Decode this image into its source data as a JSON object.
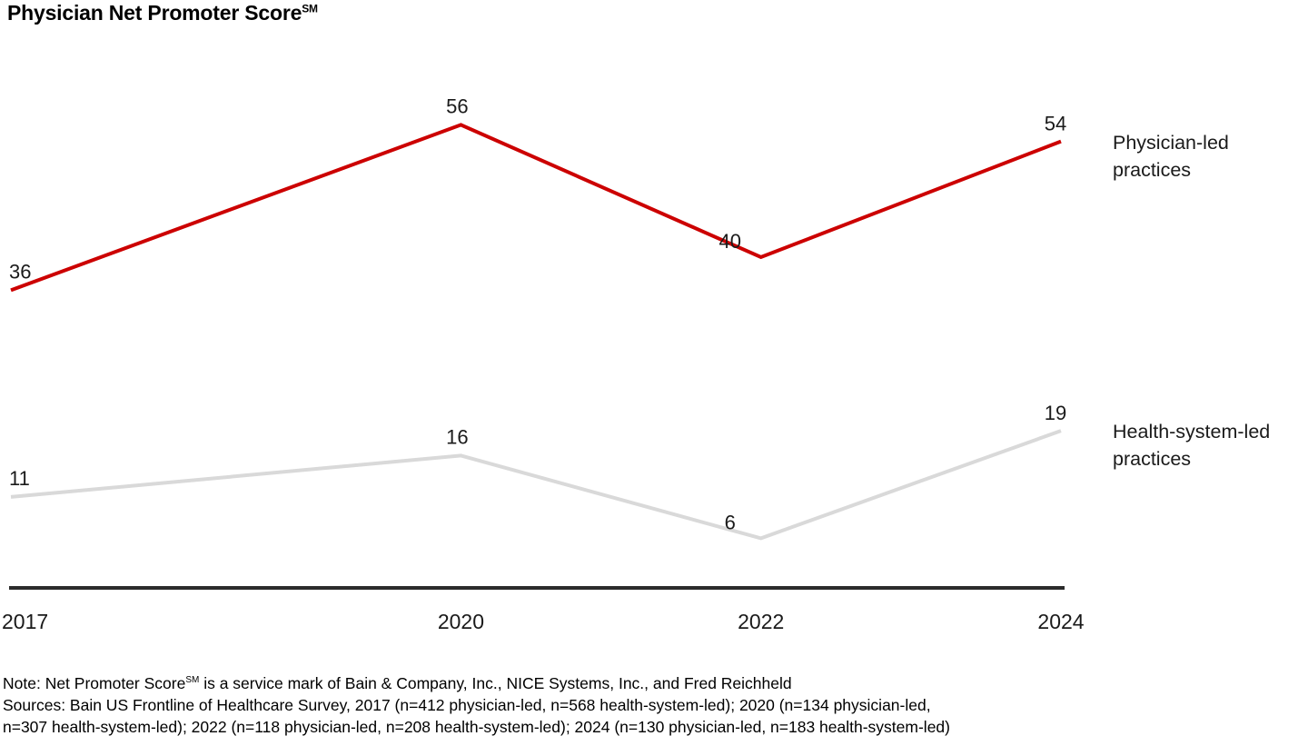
{
  "title": {
    "text": "Physician Net Promoter Score",
    "trademark": "SM"
  },
  "chart_data": {
    "type": "line",
    "x": [
      2017,
      2020,
      2022,
      2024
    ],
    "x_tick_labels": [
      "2017",
      "2020",
      "2022",
      "2024"
    ],
    "series": [
      {
        "name": "Physician-led practices",
        "values": [
          36,
          56,
          40,
          54
        ],
        "color": "#cc0000"
      },
      {
        "name": "Health-system-led practices",
        "values": [
          11,
          16,
          6,
          19
        ],
        "color": "#d9d9d9"
      }
    ],
    "ylim": [
      0,
      60
    ],
    "grid": false,
    "data_labels": true,
    "legend_position": "right-of-line-ends",
    "axis_color": "#2b2b2b",
    "label_color": "#1a1a1a",
    "title": "Physician Net Promoter Score (SM)"
  },
  "series_labels": [
    {
      "lines": [
        "Physician-led",
        "practices"
      ]
    },
    {
      "lines": [
        "Health-system-led",
        "practices"
      ]
    }
  ],
  "note": {
    "line1_prefix": "Note: Net Promoter Score",
    "line1_sup": "SM",
    "line1_suffix": " is a service mark of Bain & Company, Inc., NICE Systems, Inc., and Fred Reichheld",
    "line2": "Sources: Bain US Frontline of Healthcare Survey, 2017 (n=412 physician-led, n=568 health-system-led); 2020 (n=134 physician-led,",
    "line3": "n=307 health-system-led); 2022 (n=118 physician-led, n=208 health-system-led); 2024 (n=130 physician-led, n=183 health-system-led)"
  }
}
